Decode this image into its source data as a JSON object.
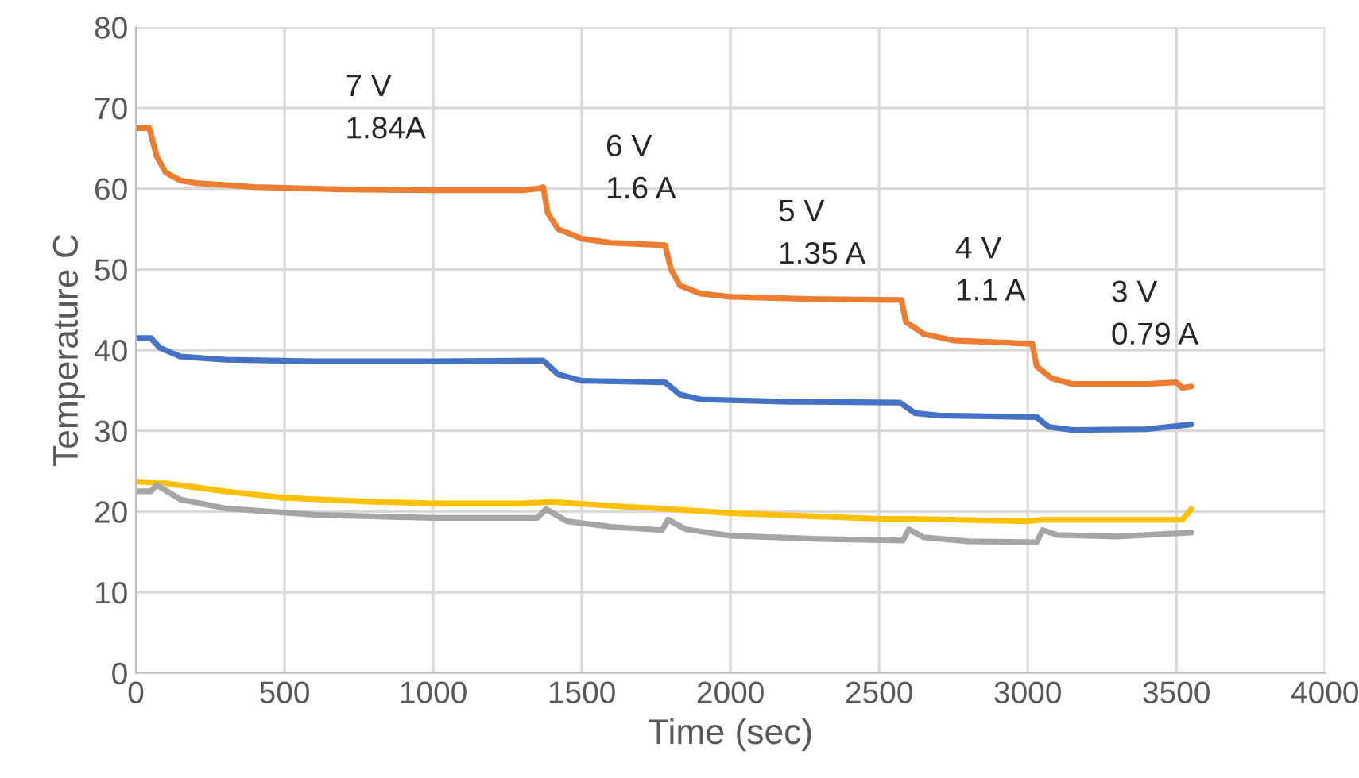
{
  "chart_data": {
    "type": "line",
    "xlabel": "Time (sec)",
    "ylabel": "Temperature C",
    "xlim": [
      0,
      4000
    ],
    "xticks": [
      0,
      500,
      1000,
      1500,
      2000,
      2500,
      3000,
      3500,
      4000
    ],
    "ylim": [
      0,
      80
    ],
    "yticks": [
      0,
      10,
      20,
      30,
      40,
      50,
      60,
      70,
      80
    ],
    "grid": true,
    "legend": false,
    "marker": "none",
    "line_style": "solid",
    "series": [
      {
        "color": "#ed7d31",
        "x": [
          0,
          45,
          70,
          100,
          150,
          200,
          400,
          700,
          1000,
          1300,
          1350,
          1370,
          1385,
          1420,
          1500,
          1600,
          1780,
          1800,
          1830,
          1900,
          2000,
          2300,
          2575,
          2590,
          2650,
          2750,
          3000,
          3015,
          3030,
          3080,
          3150,
          3400,
          3500,
          3520,
          3550
        ],
        "values": [
          67.5,
          67.5,
          64,
          62,
          61,
          60.7,
          60.2,
          59.9,
          59.8,
          59.8,
          60,
          60.2,
          57,
          55,
          53.8,
          53.3,
          53,
          50,
          48,
          47,
          46.6,
          46.3,
          46.2,
          43.5,
          42,
          41.2,
          40.8,
          40.8,
          38,
          36.5,
          35.8,
          35.8,
          36,
          35.3,
          35.5
        ]
      },
      {
        "color": "#4472c4",
        "x": [
          0,
          50,
          80,
          150,
          300,
          600,
          1000,
          1370,
          1420,
          1500,
          1780,
          1830,
          1900,
          2200,
          2570,
          2620,
          2700,
          3030,
          3070,
          3150,
          3400,
          3550
        ],
        "values": [
          41.5,
          41.5,
          40.3,
          39.2,
          38.8,
          38.6,
          38.6,
          38.7,
          37,
          36.2,
          36,
          34.5,
          33.9,
          33.6,
          33.5,
          32.2,
          31.9,
          31.7,
          30.5,
          30.1,
          30.2,
          30.8
        ]
      },
      {
        "color": "#ffc000",
        "x": [
          0,
          100,
          300,
          500,
          800,
          1000,
          1300,
          1400,
          1600,
          1800,
          2000,
          2500,
          2600,
          3000,
          3050,
          3500,
          3520,
          3550
        ],
        "values": [
          23.7,
          23.5,
          22.5,
          21.7,
          21.2,
          21,
          21,
          21.2,
          20.7,
          20.3,
          19.8,
          19.1,
          19.1,
          18.8,
          19,
          19,
          19,
          20.3
        ]
      },
      {
        "color": "#a5a5a5",
        "x": [
          0,
          50,
          70,
          150,
          300,
          600,
          1000,
          1350,
          1380,
          1450,
          1600,
          1770,
          1790,
          1850,
          2000,
          2300,
          2580,
          2600,
          2650,
          2800,
          3030,
          3050,
          3100,
          3300,
          3550
        ],
        "values": [
          22.5,
          22.5,
          23.3,
          21.5,
          20.4,
          19.6,
          19.2,
          19.2,
          20.3,
          18.8,
          18.1,
          17.7,
          19,
          17.8,
          17,
          16.6,
          16.4,
          17.8,
          16.8,
          16.3,
          16.2,
          17.7,
          17.1,
          16.9,
          17.4
        ]
      }
    ],
    "annotations": [
      "7 V\n1.84A",
      "6 V\n1.6 A",
      "5 V\n1.35 A",
      "4 V\n1.1 A",
      "3 V\n0.79 A"
    ]
  }
}
